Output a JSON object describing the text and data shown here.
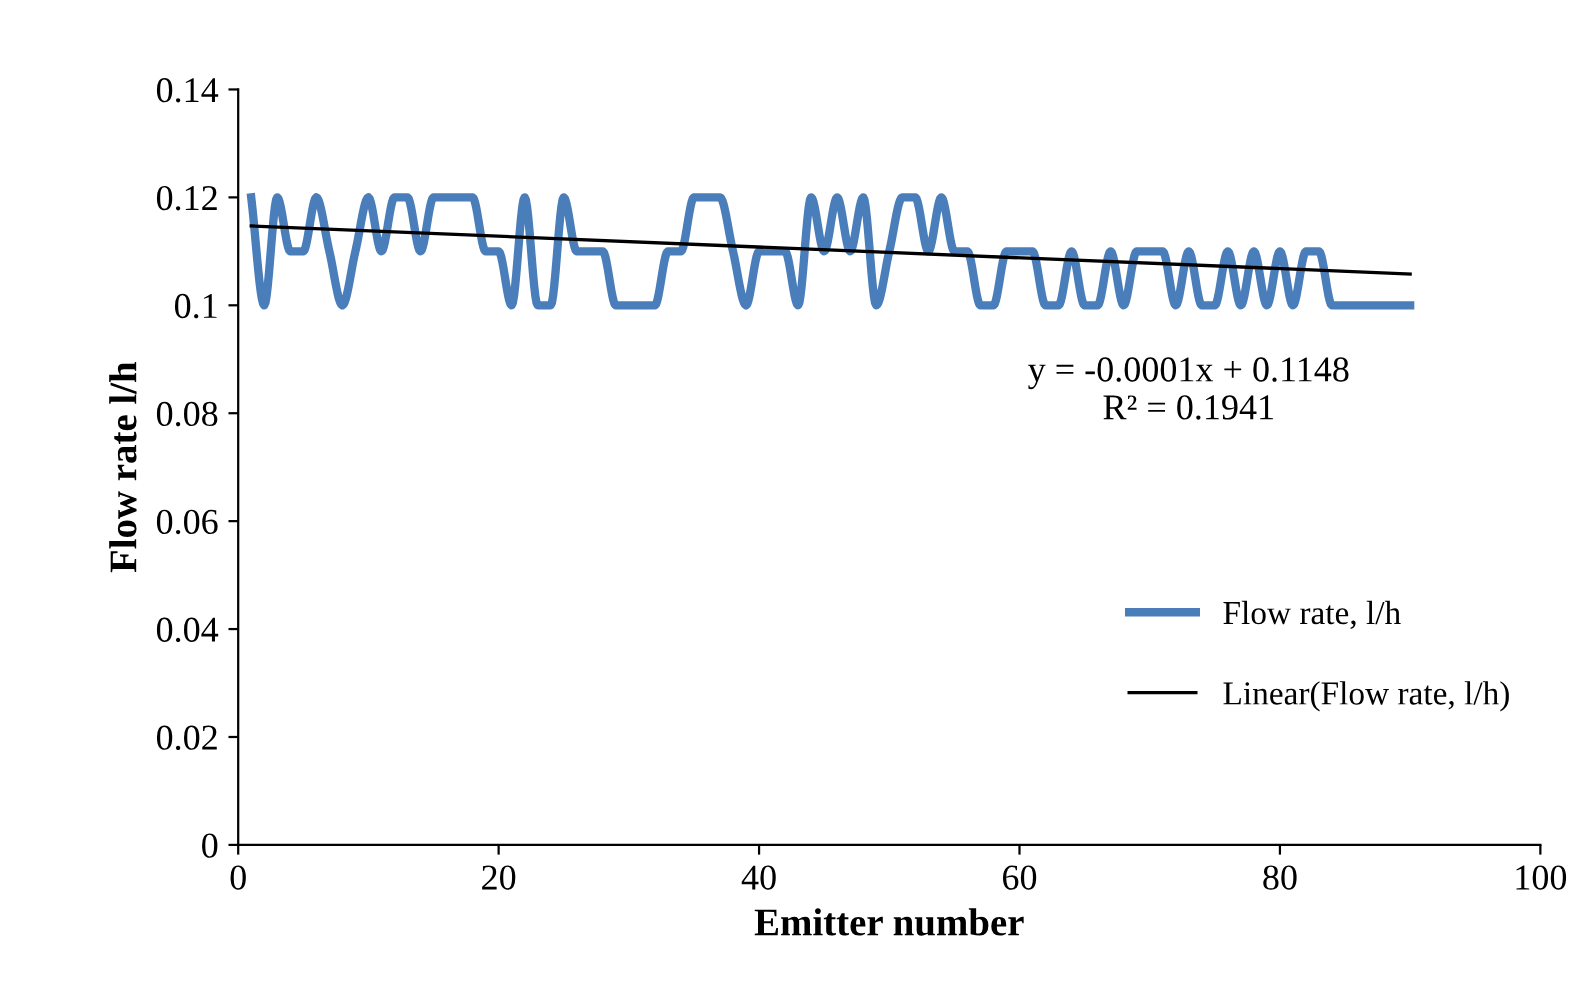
{
  "chart_data": {
    "type": "line",
    "xlabel": "Emitter number",
    "ylabel": "Flow rate l/h",
    "xlim": [
      0,
      100
    ],
    "xticks": [
      0,
      20,
      40,
      60,
      80,
      100
    ],
    "ylim": [
      0,
      0.14
    ],
    "yticks": [
      0,
      0.02,
      0.04,
      0.06,
      0.08,
      0.1,
      0.12,
      0.14
    ],
    "legend": "right",
    "grid": false,
    "marker": "none",
    "series": [
      {
        "name": "Flow rate, l/h",
        "color": "#4a7ebb",
        "line_style": "solid",
        "x": [
          1,
          2,
          3,
          4,
          5,
          6,
          7,
          8,
          9,
          10,
          11,
          12,
          13,
          14,
          15,
          16,
          17,
          18,
          19,
          20,
          21,
          22,
          23,
          24,
          25,
          26,
          27,
          28,
          29,
          30,
          31,
          32,
          33,
          34,
          35,
          36,
          37,
          38,
          39,
          40,
          41,
          42,
          43,
          44,
          45,
          46,
          47,
          48,
          49,
          50,
          51,
          52,
          53,
          54,
          55,
          56,
          57,
          58,
          59,
          60,
          61,
          62,
          63,
          64,
          65,
          66,
          67,
          68,
          69,
          70,
          71,
          72,
          73,
          74,
          75,
          76,
          77,
          78,
          79,
          80,
          81,
          82,
          83,
          84,
          85,
          86,
          87,
          88,
          89,
          90
        ],
        "values": [
          0.12,
          0.1,
          0.12,
          0.11,
          0.11,
          0.12,
          0.11,
          0.1,
          0.11,
          0.12,
          0.11,
          0.12,
          0.12,
          0.11,
          0.12,
          0.12,
          0.12,
          0.12,
          0.11,
          0.11,
          0.1,
          0.12,
          0.1,
          0.1,
          0.12,
          0.11,
          0.11,
          0.11,
          0.1,
          0.1,
          0.1,
          0.1,
          0.11,
          0.11,
          0.12,
          0.12,
          0.12,
          0.11,
          0.1,
          0.11,
          0.11,
          0.11,
          0.1,
          0.12,
          0.11,
          0.12,
          0.11,
          0.12,
          0.1,
          0.11,
          0.12,
          0.12,
          0.11,
          0.12,
          0.11,
          0.11,
          0.1,
          0.1,
          0.11,
          0.11,
          0.11,
          0.1,
          0.1,
          0.11,
          0.1,
          0.1,
          0.11,
          0.1,
          0.11,
          0.11,
          0.11,
          0.1,
          0.11,
          0.1,
          0.1,
          0.11,
          0.1,
          0.11,
          0.1,
          0.11,
          0.1,
          0.11,
          0.11,
          0.1,
          0.1,
          0.1,
          0.1,
          0.1,
          0.1,
          0.1
        ]
      },
      {
        "name": "Linear(Flow rate, l/h)",
        "color": "#000000",
        "line_style": "solid",
        "x": [
          1,
          90
        ],
        "values": [
          0.1147,
          0.1058
        ]
      }
    ],
    "annotations": [
      "y = -0.0001x + 0.1148\nR² = 0.1941"
    ]
  }
}
